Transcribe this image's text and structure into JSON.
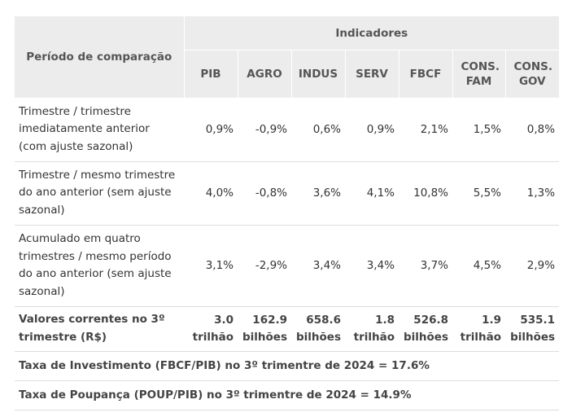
{
  "header": {
    "period": "Período de comparação",
    "group": "Indicadores",
    "columns": [
      "PIB",
      "AGRO",
      "INDUS",
      "SERV",
      "FBCF",
      "CONS. FAM",
      "CONS. GOV"
    ]
  },
  "rows": [
    {
      "label": "Trimestre / trimestre imediatamente anterior (com ajuste sazonal)",
      "values": [
        "0,9%",
        "-0,9%",
        "0,6%",
        "0,9%",
        "2,1%",
        "1,5%",
        "0,8%"
      ]
    },
    {
      "label": "Trimestre / mesmo trimestre do ano anterior (sem ajuste sazonal)",
      "values": [
        "4,0%",
        "-0,8%",
        "3,6%",
        "4,1%",
        "10,8%",
        "5,5%",
        "1,3%"
      ]
    },
    {
      "label": "Acumulado em quatro trimestres / mesmo período do ano anterior (sem ajuste sazonal)",
      "values": [
        "3,1%",
        "-2,9%",
        "3,4%",
        "3,4%",
        "3,7%",
        "4,5%",
        "2,9%"
      ]
    },
    {
      "label": "Valores correntes no 3º trimestre (R$)",
      "values": [
        "3.0 trilhão",
        "162.9 bilhões",
        "658.6 bilhões",
        "1.8 trilhão",
        "526.8 bilhões",
        "1.9 trilhão",
        "535.1 bilhões"
      ]
    }
  ],
  "footnotes": [
    "Taxa de Investimento (FBCF/PIB) no 3º trimentre de 2024 = 17.6%",
    "Taxa de Poupança (POUP/PIB) no 3º trimentre de 2024 = 14.9%"
  ]
}
